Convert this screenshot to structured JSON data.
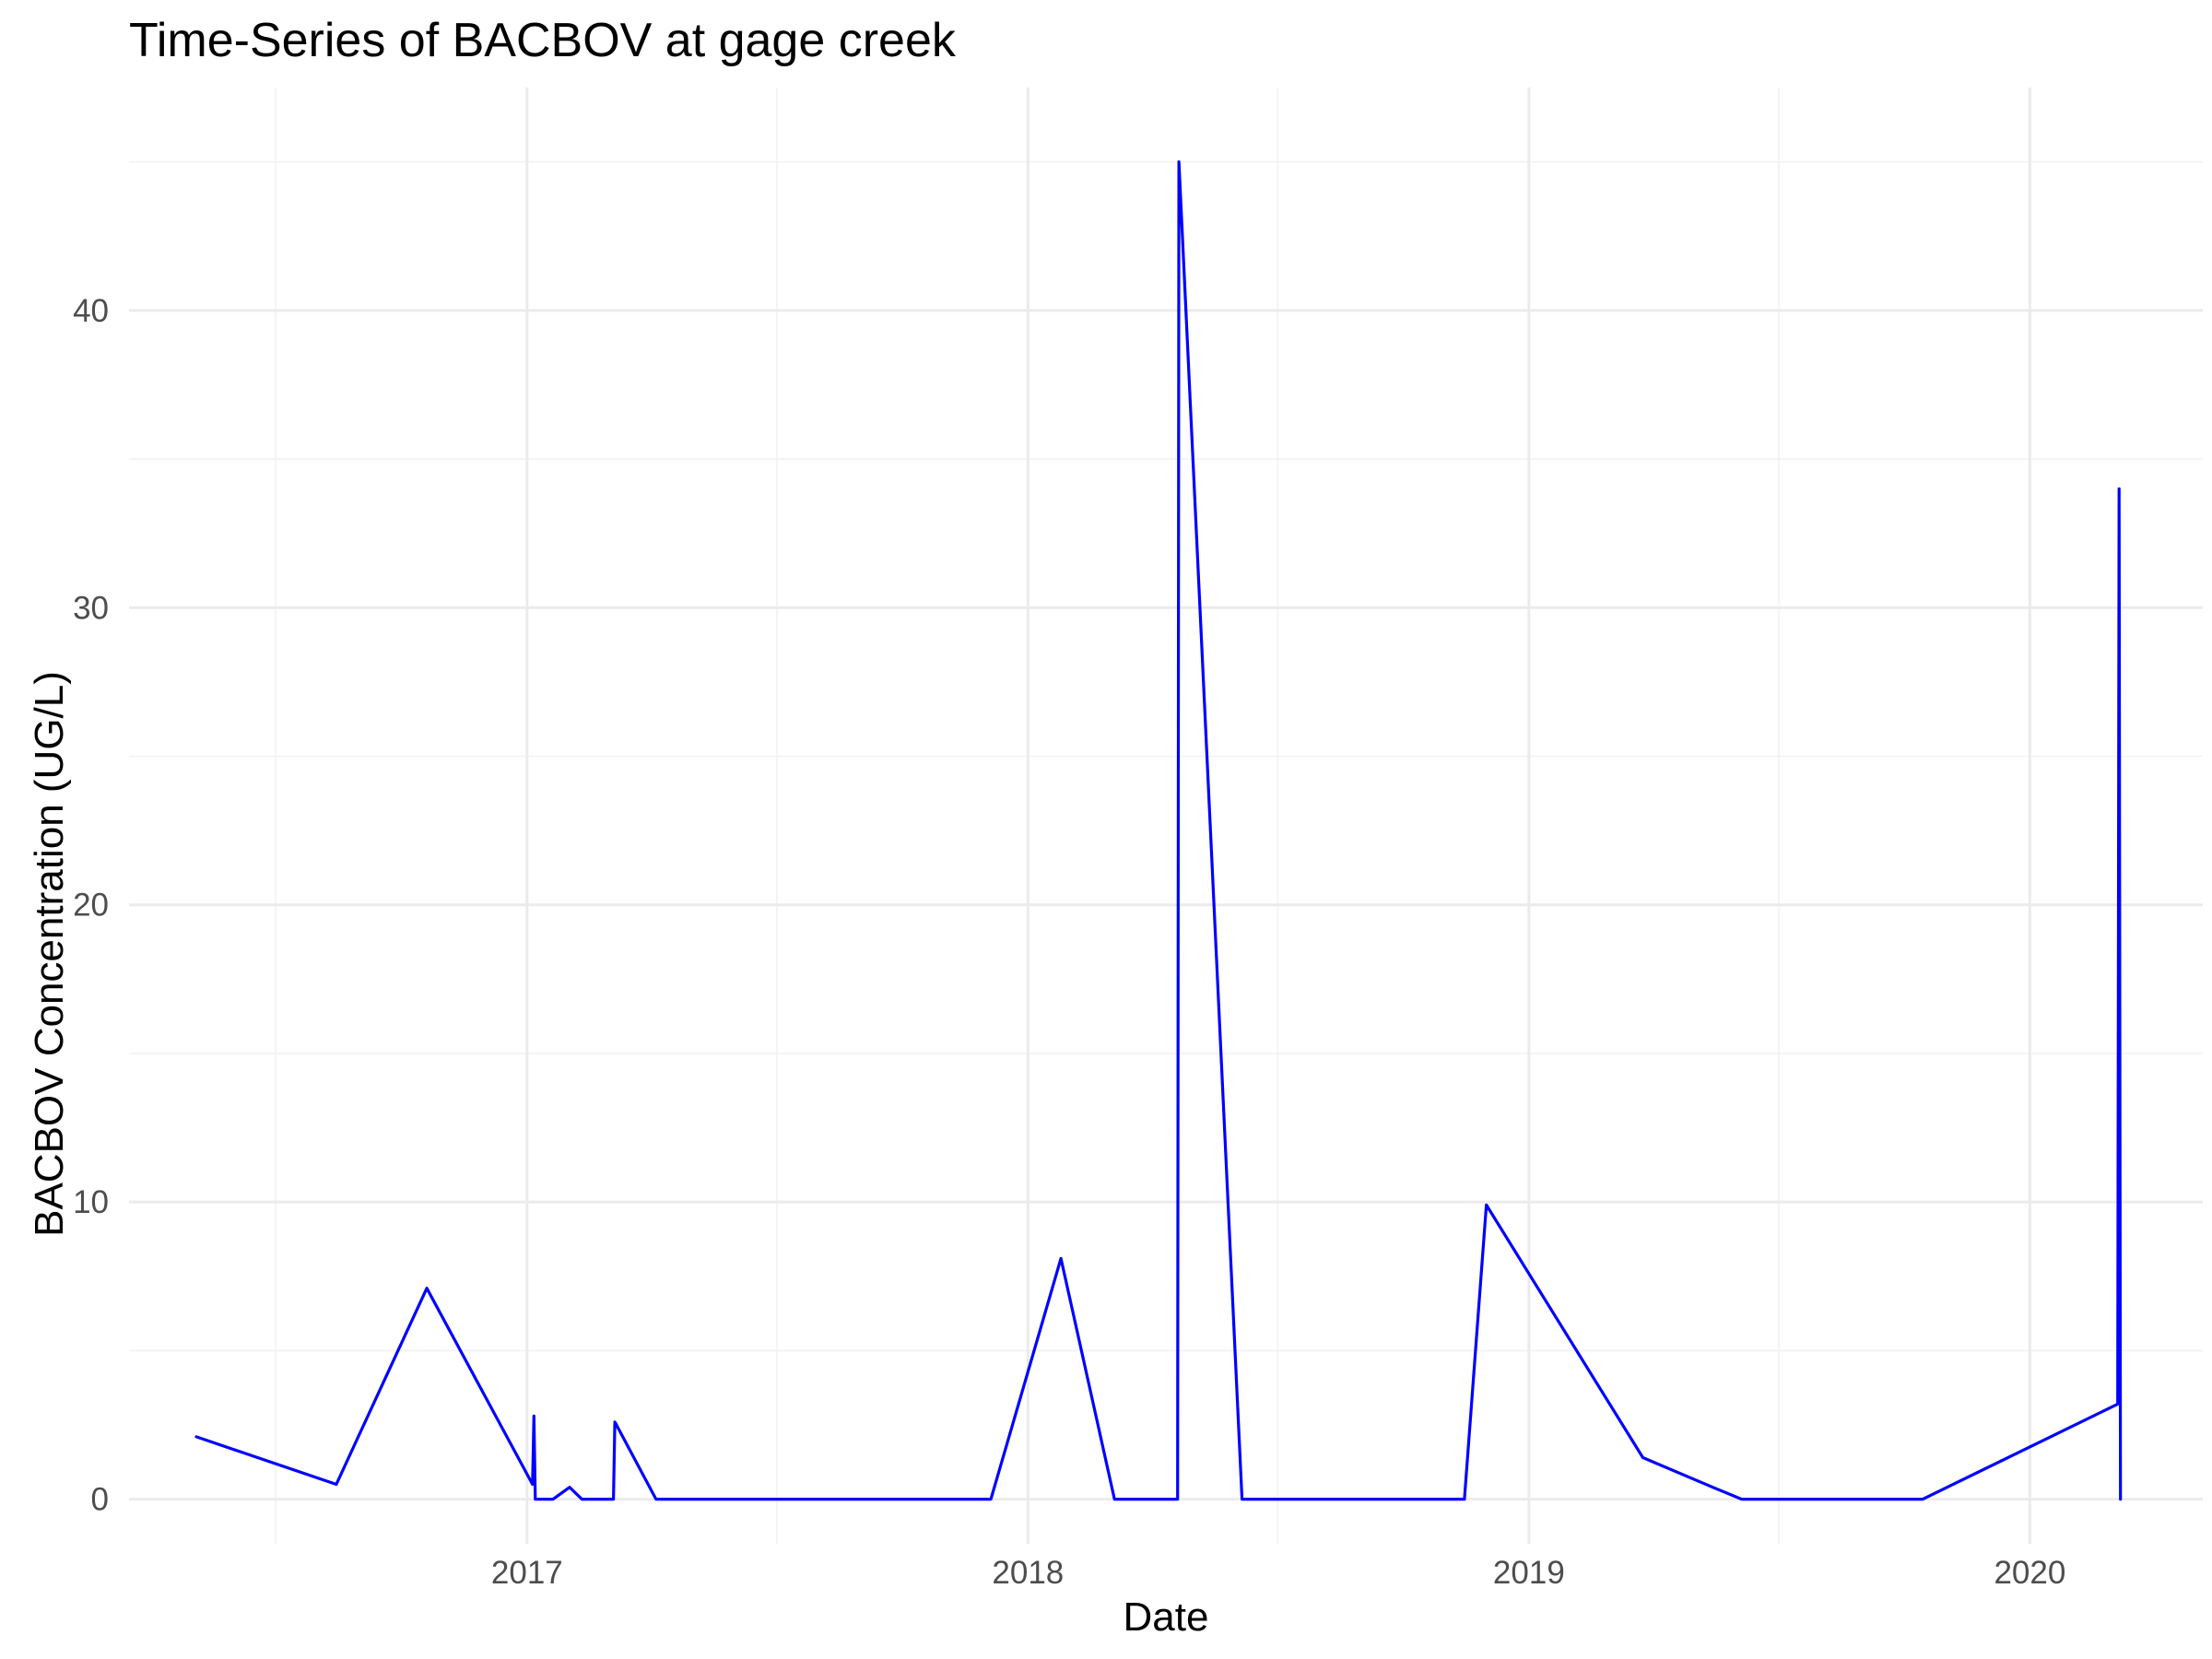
{
  "chart_data": {
    "type": "line",
    "title": "Time-Series of BACBOV at gage creek",
    "xlabel": "Date",
    "ylabel": "BACBOV Concentration (UG/L)",
    "x_ticks": [
      "2017",
      "2018",
      "2019",
      "2020"
    ],
    "y_ticks": [
      0,
      10,
      20,
      30,
      40
    ],
    "ylim": [
      -1.5,
      47.5
    ],
    "xlim": [
      "2016-03-17",
      "2020-05-06"
    ],
    "grid": true,
    "line_color": "#0000ff",
    "x": [
      "2016-05-05",
      "2016-08-15",
      "2016-10-20",
      "2017-01-05",
      "2017-01-06",
      "2017-01-07",
      "2017-01-20",
      "2017-02-01",
      "2017-02-10",
      "2017-03-05",
      "2017-03-06",
      "2017-04-05",
      "2017-12-05",
      "2018-01-25",
      "2018-03-05",
      "2018-04-20",
      "2018-04-21",
      "2018-06-06",
      "2018-11-15",
      "2018-12-01",
      "2019-03-25",
      "2019-05-15",
      "2019-06-05",
      "2019-10-15",
      "2020-03-05",
      "2020-03-06",
      "2020-03-07"
    ],
    "values": [
      2.1,
      0.5,
      7.1,
      0.5,
      2.8,
      0.0,
      0.0,
      0.4,
      0.0,
      0.0,
      2.6,
      0.0,
      0.0,
      8.1,
      0.0,
      0.0,
      45.0,
      0.0,
      0.0,
      9.9,
      1.4,
      0.4,
      0.0,
      0.0,
      3.2,
      34.0,
      0.0
    ]
  }
}
